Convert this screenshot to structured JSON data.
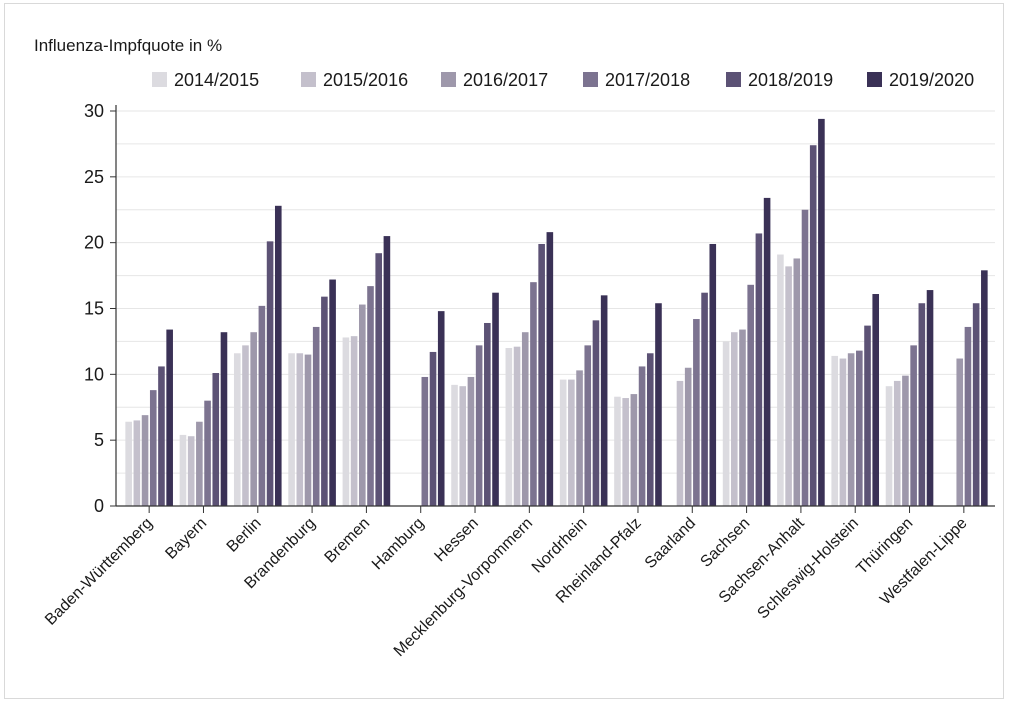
{
  "chart_data": {
    "type": "bar",
    "ylabel": "Influenza-Impfquote in %",
    "ylim": [
      0,
      30
    ],
    "yticks": [
      0,
      5,
      10,
      15,
      20,
      25,
      30
    ],
    "grid": "horizontal",
    "legend_position": "top",
    "categories": [
      "Baden-Württemberg",
      "Bayern",
      "Berlin",
      "Brandenburg",
      "Bremen",
      "Hamburg",
      "Hessen",
      "Mecklenburg-Vorpommern",
      "Nordrhein",
      "Rheinland-Pfalz",
      "Saarland",
      "Sachsen",
      "Sachsen-Anhalt",
      "Schleswig-Holstein",
      "Thüringen",
      "Westfalen-Lippe"
    ],
    "series": [
      {
        "name": "2014/2015",
        "color": "#dcdbe0",
        "values": [
          6.4,
          5.4,
          11.6,
          11.6,
          12.8,
          null,
          9.2,
          12.0,
          9.6,
          8.3,
          null,
          12.5,
          19.1,
          11.4,
          9.1,
          null
        ]
      },
      {
        "name": "2015/2016",
        "color": "#c4c0cc",
        "values": [
          6.5,
          5.3,
          12.2,
          11.6,
          12.9,
          null,
          9.1,
          12.1,
          9.6,
          8.2,
          9.5,
          13.2,
          18.2,
          11.2,
          9.5,
          null
        ]
      },
      {
        "name": "2016/2017",
        "color": "#9e98ab",
        "values": [
          6.9,
          6.4,
          13.2,
          11.5,
          15.3,
          null,
          9.8,
          13.2,
          10.3,
          8.5,
          10.5,
          13.4,
          18.8,
          11.6,
          9.9,
          11.2
        ]
      },
      {
        "name": "2017/2018",
        "color": "#7c7390",
        "values": [
          8.8,
          8.0,
          15.2,
          13.6,
          16.7,
          9.8,
          12.2,
          17.0,
          12.2,
          10.6,
          14.2,
          16.8,
          22.5,
          11.8,
          12.2,
          13.6
        ]
      },
      {
        "name": "2018/2019",
        "color": "#5c5275",
        "values": [
          10.6,
          10.1,
          20.1,
          15.9,
          19.2,
          11.7,
          13.9,
          19.9,
          14.1,
          11.6,
          16.2,
          20.7,
          27.4,
          13.7,
          15.4,
          15.4
        ]
      },
      {
        "name": "2019/2020",
        "color": "#3a3156",
        "values": [
          13.4,
          13.2,
          22.8,
          17.2,
          20.5,
          14.8,
          16.2,
          20.8,
          16.0,
          15.4,
          19.9,
          23.4,
          29.4,
          16.1,
          16.4,
          17.9
        ]
      }
    ]
  }
}
